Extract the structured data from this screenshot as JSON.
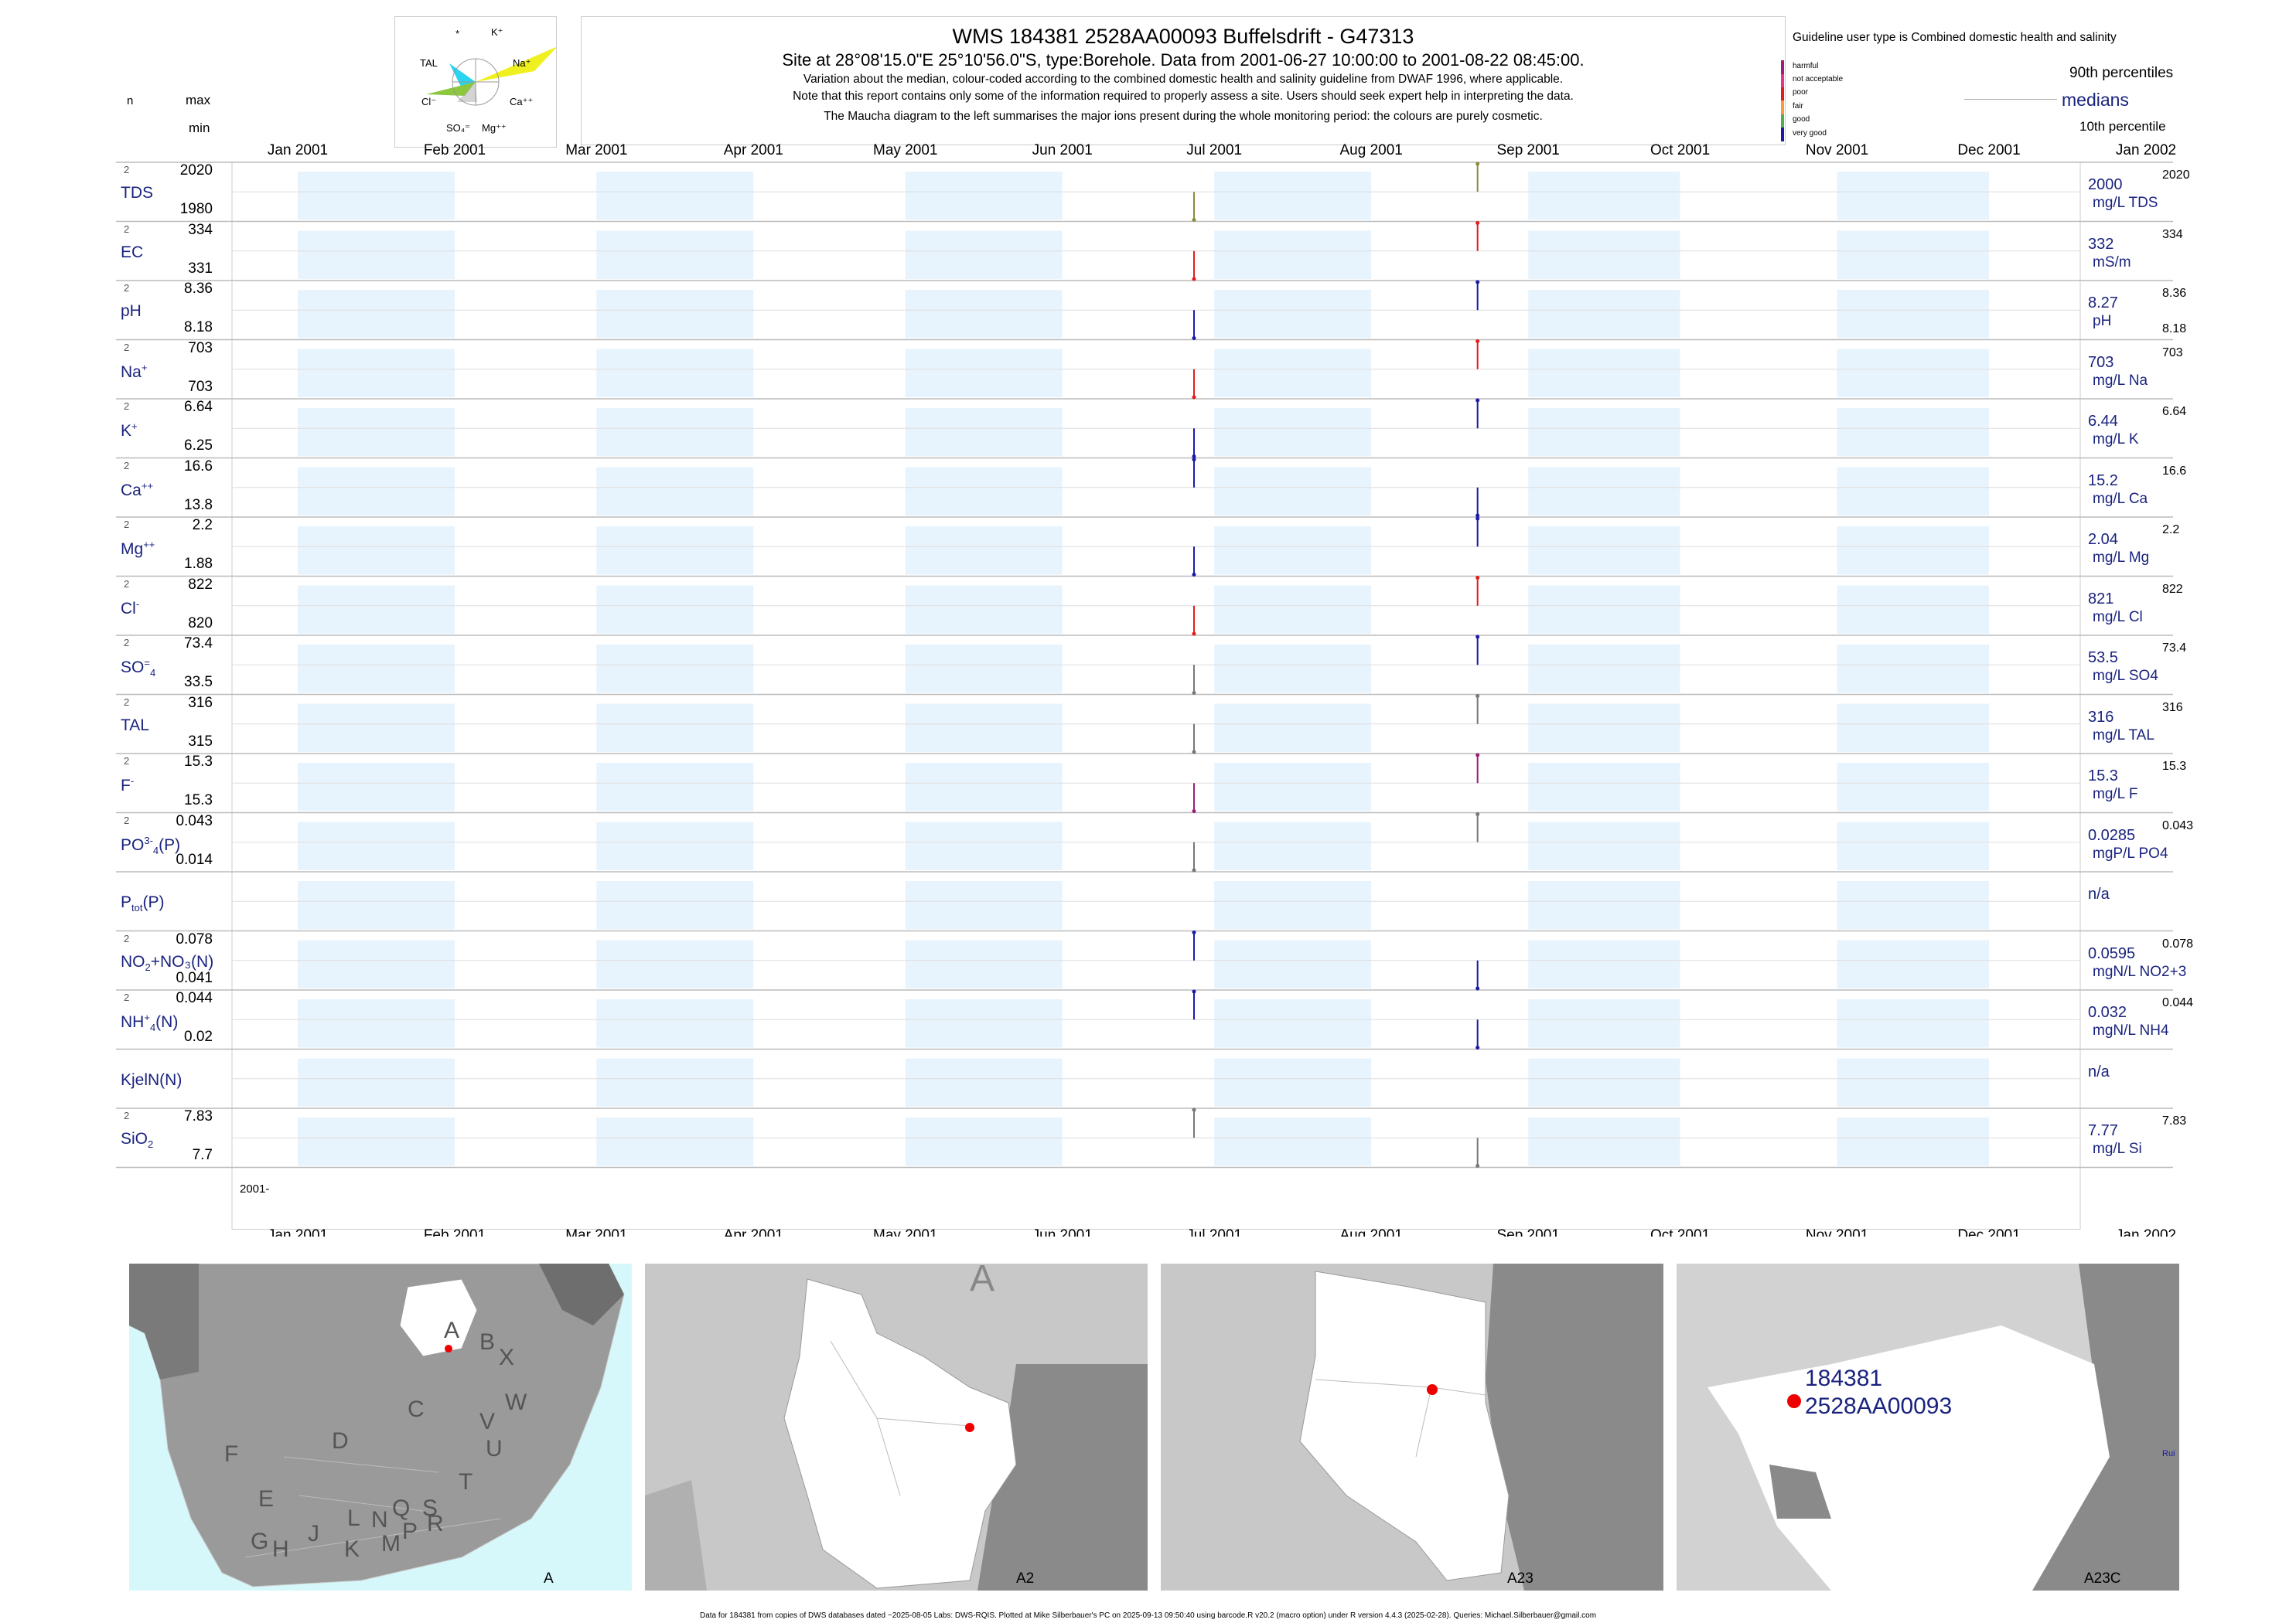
{
  "header": {
    "title": "WMS 184381 2528AA00093 Buffelsdrift - G47313",
    "subtitle": "Site at 28°08'15.0\"E 25°10'56.0\"S, type:Borehole.  Data from 2001-06-27 10:00:00 to 2001-08-22 08:45:00.",
    "line1": "Variation about the median,  colour-coded according to the combined domestic health and salinity guideline from DWAF 1996, where applicable.",
    "line2": "Note that this report contains only some of the information required to properly assess a site. Users should seek expert help in interpreting the data.",
    "line3": "The Maucha diagram to the left summarises the major ions present during the whole monitoring period: the colours are purely cosmetic."
  },
  "maucha": {
    "labels": [
      "*",
      "K⁺",
      "TAL",
      "Na⁺",
      "Cl⁻",
      "Ca⁺⁺",
      "SO₄⁼",
      "Mg⁺⁺"
    ],
    "colors": {
      "cl": "#8dc63f",
      "tal": "#29d4f0",
      "na": "#f0f020"
    }
  },
  "legend": {
    "guideline": "Guideline user type is Combined domestic health and salinity",
    "categories": [
      {
        "label": "harmful",
        "color": "#9c1e7a"
      },
      {
        "label": "not acceptable",
        "color": "#e8328c"
      },
      {
        "label": "poor",
        "color": "#e31a1c"
      },
      {
        "label": "fair",
        "color": "#ff9933"
      },
      {
        "label": "good",
        "color": "#4caf50"
      },
      {
        "label": "very good",
        "color": "#1a1aa6"
      }
    ],
    "p90": "90th percentiles",
    "medians": "medians",
    "p10": "10th percentile"
  },
  "col_headers": {
    "n": "n",
    "max": "max",
    "min": "min"
  },
  "chart_data": {
    "type": "line",
    "title": "WMS 184381 2528AA00093 Buffelsdrift - G47313",
    "x_ticks": [
      "Jan 2001",
      "Feb 2001",
      "Mar 2001",
      "Apr 2001",
      "May 2001",
      "Jun 2001",
      "Jul 2001",
      "Aug 2001",
      "Sep 2001",
      "Oct 2001",
      "Nov 2001",
      "Dec 2001",
      "Jan 2002"
    ],
    "xlim": [
      "2001-01-01",
      "2002-01-01"
    ],
    "sample_dates": [
      "2001-06-27",
      "2001-08-22"
    ],
    "bottom_label": "2001-",
    "series": [
      {
        "name": "TDS",
        "label": "TDS",
        "sup": "",
        "sub": "",
        "n": "2",
        "max": "2020",
        "min": "1980",
        "median": "2000",
        "unit": "mg/L TDS",
        "rmax": "2020",
        "values": [
          1980,
          2020
        ],
        "colors": [
          "#8b8b3a",
          "#8b8b3a"
        ]
      },
      {
        "name": "EC",
        "label": "EC",
        "sup": "",
        "sub": "",
        "n": "2",
        "max": "334",
        "min": "331",
        "median": "332",
        "unit": "mS/m",
        "rmax": "334",
        "values": [
          331,
          334
        ],
        "colors": [
          "#e31a1c",
          "#e31a1c"
        ]
      },
      {
        "name": "pH",
        "label": "pH",
        "sup": "",
        "sub": "",
        "n": "2",
        "max": "8.36",
        "min": "8.18",
        "median": "8.27",
        "unit": "pH",
        "rmax": "8.36",
        "rmin": "8.18",
        "values": [
          8.18,
          8.36
        ],
        "colors": [
          "#1a1aa6",
          "#1a1aa6"
        ]
      },
      {
        "name": "Na",
        "label": "Na",
        "sup": "+",
        "sub": "",
        "n": "2",
        "max": "703",
        "min": "703",
        "median": "703",
        "unit": "mg/L Na",
        "rmax": "703",
        "values": [
          702.9,
          703.1
        ],
        "colors": [
          "#e31a1c",
          "#e31a1c"
        ]
      },
      {
        "name": "K",
        "label": "K",
        "sup": "+",
        "sub": "",
        "n": "2",
        "max": "6.64",
        "min": "6.25",
        "median": "6.44",
        "unit": "mg/L K",
        "rmax": "6.64",
        "values": [
          6.25,
          6.64
        ],
        "colors": [
          "#1a1aa6",
          "#1a1aa6"
        ]
      },
      {
        "name": "Ca",
        "label": "Ca",
        "sup": "++",
        "sub": "",
        "n": "2",
        "max": "16.6",
        "min": "13.8",
        "median": "15.2",
        "unit": "mg/L Ca",
        "rmax": "16.6",
        "values": [
          16.6,
          13.8
        ],
        "colors": [
          "#1a1aa6",
          "#1a1aa6"
        ]
      },
      {
        "name": "Mg",
        "label": "Mg",
        "sup": "++",
        "sub": "",
        "n": "2",
        "max": "2.2",
        "min": "1.88",
        "median": "2.04",
        "unit": "mg/L Mg",
        "rmax": "2.2",
        "values": [
          1.88,
          2.2
        ],
        "colors": [
          "#1a1aa6",
          "#1a1aa6"
        ]
      },
      {
        "name": "Cl",
        "label": "Cl",
        "sup": "-",
        "sub": "",
        "n": "2",
        "max": "822",
        "min": "820",
        "median": "821",
        "unit": "mg/L Cl",
        "rmax": "822",
        "values": [
          820,
          822
        ],
        "colors": [
          "#e31a1c",
          "#e31a1c"
        ]
      },
      {
        "name": "SO4",
        "label": "SO",
        "sup": "=",
        "sub": "4",
        "n": "2",
        "max": "73.4",
        "min": "33.5",
        "median": "53.5",
        "unit": "mg/L SO4",
        "rmax": "73.4",
        "values": [
          33.5,
          73.4
        ],
        "colors": [
          "#777777",
          "#1a1aa6"
        ]
      },
      {
        "name": "TAL",
        "label": "TAL",
        "sup": "",
        "sub": "",
        "n": "2",
        "max": "316",
        "min": "315",
        "median": "316",
        "unit": "mg/L TAL",
        "rmax": "316",
        "values": [
          315,
          316
        ],
        "colors": [
          "#777777",
          "#777777"
        ]
      },
      {
        "name": "F",
        "label": "F",
        "sup": "-",
        "sub": "",
        "n": "2",
        "max": "15.3",
        "min": "15.3",
        "median": "15.3",
        "unit": "mg/L F",
        "rmax": "15.3",
        "values": [
          15.29,
          15.31
        ],
        "colors": [
          "#9c1e7a",
          "#9c1e7a"
        ]
      },
      {
        "name": "PO4(P)",
        "label": "PO",
        "sup": "3-",
        "sub": "4",
        "suffix": "(P)",
        "n": "2",
        "max": "0.043",
        "min": "0.014",
        "median": "0.0285",
        "unit": "mgP/L PO4",
        "rmax": "0.043",
        "values": [
          0.014,
          0.043
        ],
        "colors": [
          "#777777",
          "#777777"
        ]
      },
      {
        "name": "Ptot(P)",
        "label": "P",
        "sup": "",
        "sub": "tot",
        "suffix": "(P)",
        "n": "",
        "max": "",
        "min": "",
        "median": "n/a",
        "unit": "",
        "rmax": "",
        "values": [],
        "colors": []
      },
      {
        "name": "NO2+NO3(N)",
        "label": "NO",
        "sup": "",
        "sub": "2",
        "suffix": "+NO₃(N)",
        "n": "2",
        "max": "0.078",
        "min": "0.041",
        "median": "0.0595",
        "unit": "mgN/L NO2+3",
        "rmax": "0.078",
        "values": [
          0.078,
          0.041
        ],
        "colors": [
          "#1a1aa6",
          "#1a1aa6"
        ]
      },
      {
        "name": "NH4(N)",
        "label": "NH",
        "sup": "+",
        "sub": "4",
        "suffix": "(N)",
        "n": "2",
        "max": "0.044",
        "min": "0.02",
        "median": "0.032",
        "unit": "mgN/L NH4",
        "rmax": "0.044",
        "values": [
          0.044,
          0.02
        ],
        "colors": [
          "#1a1aa6",
          "#1a1aa6"
        ]
      },
      {
        "name": "KjelN(N)",
        "label": "KjelN(N)",
        "sup": "",
        "sub": "",
        "n": "",
        "max": "",
        "min": "",
        "median": "n/a",
        "unit": "",
        "rmax": "",
        "values": [],
        "colors": []
      },
      {
        "name": "SiO2",
        "label": "SiO",
        "sup": "",
        "sub": "2",
        "n": "2",
        "max": "7.83",
        "min": "7.7",
        "median": "7.77",
        "unit": "mg/L Si",
        "rmax": "7.83",
        "values": [
          7.83,
          7.7
        ],
        "colors": [
          "#777777",
          "#777777"
        ]
      }
    ]
  },
  "maps": [
    {
      "caption": "A",
      "regions": [
        "A",
        "B",
        "X",
        "W",
        "C",
        "V",
        "D",
        "U",
        "T",
        "F",
        "E",
        "G",
        "H",
        "J",
        "K",
        "L",
        "N",
        "Q",
        "M",
        "P",
        "S",
        "R"
      ]
    },
    {
      "caption": "A2",
      "watermark": "A"
    },
    {
      "caption": "A23"
    },
    {
      "caption": "A23C",
      "site_id": "184381",
      "site_code": "2528AA00093",
      "water_label": "Rui"
    }
  ],
  "footer": "Data for 184381 from copies of DWS databases dated ~2025-08-05 Labs: DWS-RQIS. Plotted at Mike Silberbauer's PC on 2025-09-13 09:50:40 using barcode.R v20.2 (macro option) under R version 4.4.3 (2025-02-28). Queries: Michael.Silberbauer@gmail.com"
}
